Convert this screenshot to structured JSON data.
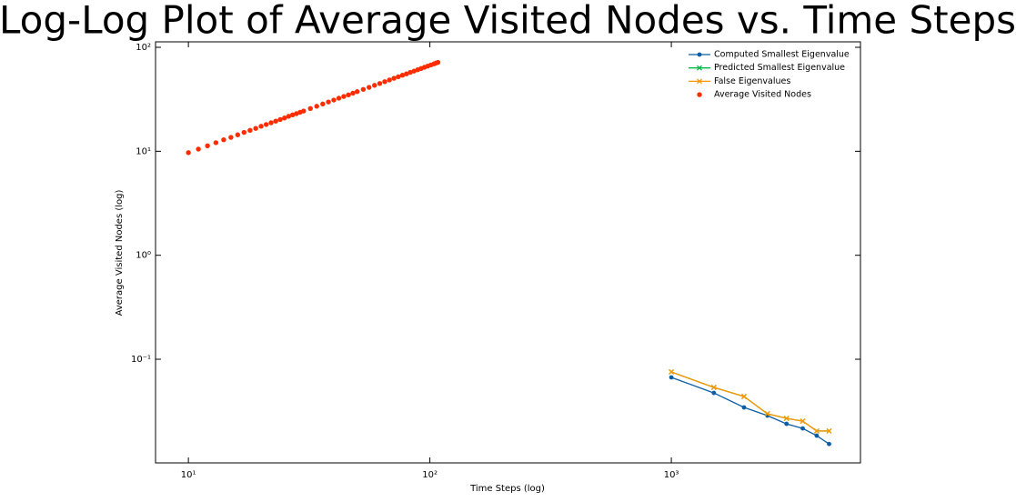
{
  "chart_data": {
    "type": "line",
    "title": "Log-Log Plot of Average Visited Nodes vs. Time Steps",
    "x_label": "Time Steps (log)",
    "y_label": "Average Visited Nodes (log)",
    "x_scale": "log",
    "y_scale": "log",
    "xlim": [
      7.31,
      6070
    ],
    "ylim": [
      0.01007,
      112.9
    ],
    "xticks": [
      {
        "value": 10,
        "label": "10¹"
      },
      {
        "value": 100,
        "label": "10²"
      },
      {
        "value": 1000,
        "label": "10³"
      }
    ],
    "yticks": [
      {
        "value": 0.1,
        "label": "10⁻¹"
      },
      {
        "value": 1,
        "label": "10⁰"
      },
      {
        "value": 10,
        "label": "10¹"
      },
      {
        "value": 100,
        "label": "10²"
      }
    ],
    "legend": "upper right",
    "series": [
      {
        "name": "Computed Smallest Eigenvalue",
        "type": "line",
        "marker": "circle",
        "color": "#0c5da5",
        "x": [
          1000,
          1500,
          2000,
          2500,
          3000,
          3500,
          4000,
          4500
        ],
        "values": [
          0.0669,
          0.0474,
          0.0344,
          0.0287,
          0.0239,
          0.0216,
          0.0184,
          0.0153
        ]
      },
      {
        "name": "Predicted Smallest Eigenvalue",
        "type": "line",
        "marker": "x",
        "color": "#00b945",
        "x": [
          1000,
          1500,
          2000,
          2500,
          3000,
          3500,
          4000,
          4500
        ],
        "values": [
          0.0755,
          0.0536,
          0.0438,
          0.0299,
          0.027,
          0.0254,
          0.0204,
          0.0204
        ]
      },
      {
        "name": "False Eigenvalues",
        "type": "line",
        "marker": "x",
        "color": "#ff9500",
        "x": [
          1000,
          1500,
          2000,
          2500,
          3000,
          3500,
          4000,
          4500
        ],
        "values": [
          0.0755,
          0.0536,
          0.0438,
          0.0299,
          0.027,
          0.0254,
          0.0204,
          0.0204
        ]
      },
      {
        "name": "Average Visited Nodes",
        "type": "scatter",
        "marker": "dot",
        "color": "#ff2c00",
        "x": [
          10,
          11,
          12,
          13,
          14,
          15,
          16,
          17,
          18,
          19,
          20,
          21,
          22,
          23,
          24,
          25,
          26,
          27,
          28,
          29,
          30,
          32,
          34,
          36,
          38,
          40,
          42,
          44,
          46,
          48,
          50,
          53,
          56,
          59,
          62,
          65,
          68,
          71,
          74,
          77,
          80,
          83,
          86,
          89,
          92,
          95,
          98,
          101,
          104,
          106,
          108
        ],
        "values": [
          9.7,
          10.5,
          11.3,
          12.1,
          12.9,
          13.6,
          14.4,
          15.2,
          15.9,
          16.6,
          17.4,
          18.1,
          18.8,
          19.5,
          20.2,
          20.9,
          21.7,
          22.4,
          23.0,
          23.7,
          24.4,
          25.8,
          27.1,
          28.5,
          29.8,
          31.1,
          32.4,
          33.7,
          34.9,
          36.2,
          37.5,
          39.4,
          41.2,
          43.1,
          44.9,
          46.7,
          48.5,
          50.4,
          52.1,
          53.9,
          55.6,
          57.4,
          59.1,
          60.8,
          62.6,
          64.3,
          66.0,
          67.7,
          69.3,
          70.5,
          71.6
        ]
      }
    ]
  }
}
